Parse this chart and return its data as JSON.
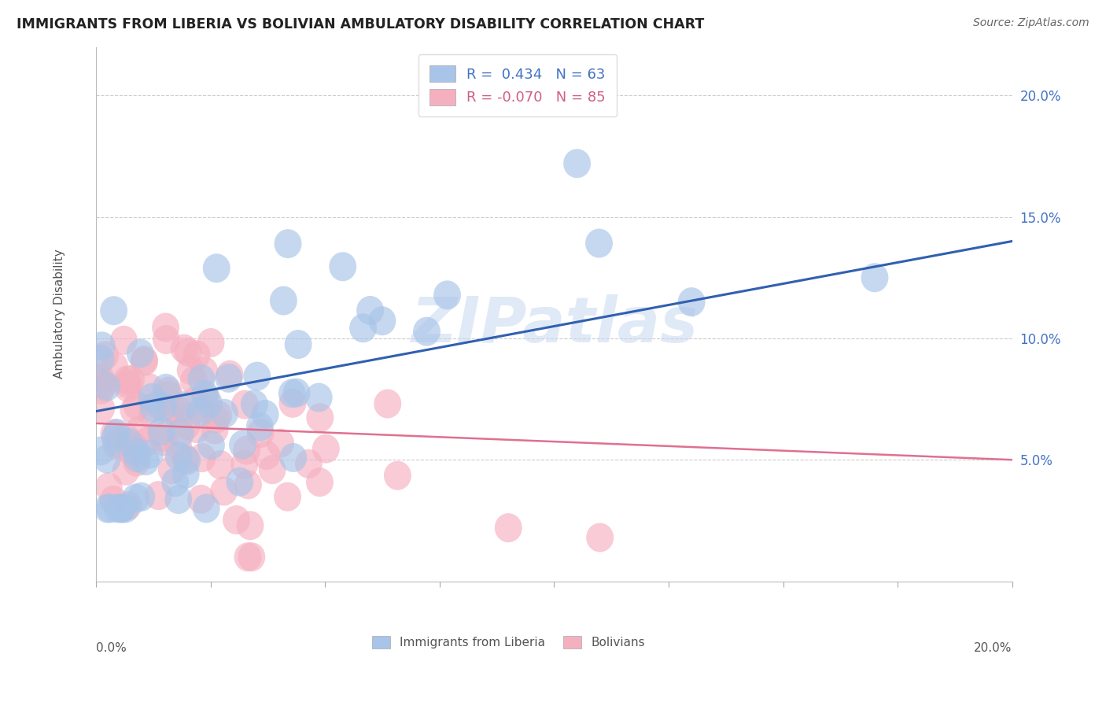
{
  "title": "IMMIGRANTS FROM LIBERIA VS BOLIVIAN AMBULATORY DISABILITY CORRELATION CHART",
  "source": "Source: ZipAtlas.com",
  "ylabel": "Ambulatory Disability",
  "ytick_vals": [
    0.05,
    0.1,
    0.15,
    0.2
  ],
  "ytick_labels": [
    "5.0%",
    "10.0%",
    "15.0%",
    "20.0%"
  ],
  "xlim": [
    0.0,
    0.2
  ],
  "ylim": [
    0.0,
    0.22
  ],
  "blue_R": "0.434",
  "blue_N": "63",
  "pink_R": "-0.070",
  "pink_N": "85",
  "blue_color": "#a8c4e8",
  "pink_color": "#f5b0c0",
  "blue_line_color": "#3060b0",
  "pink_line_color": "#e07090",
  "legend_label_blue": "Immigrants from Liberia",
  "legend_label_pink": "Bolivians",
  "blue_line_x": [
    0.0,
    0.2
  ],
  "blue_line_y": [
    0.07,
    0.14
  ],
  "pink_line_x": [
    0.0,
    0.2
  ],
  "pink_line_y": [
    0.065,
    0.05
  ],
  "watermark": "ZIPatlas",
  "watermark_color": "#c8d8f0"
}
